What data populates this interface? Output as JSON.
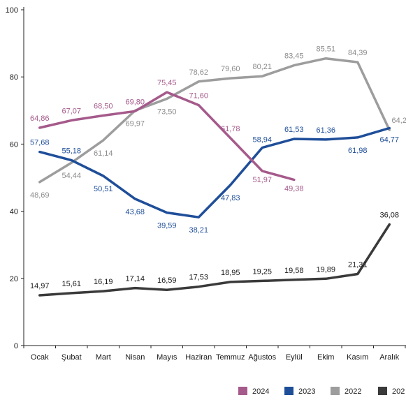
{
  "chart_data": {
    "type": "line",
    "title": "",
    "xlabel": "",
    "ylabel": "",
    "ylim": [
      0,
      100
    ],
    "yticks": [
      0,
      20,
      40,
      60,
      80,
      100
    ],
    "grid": false,
    "legend_position": "bottom-right",
    "categories": [
      "Ocak",
      "Şubat",
      "Mart",
      "Nisan",
      "Mayıs",
      "Haziran",
      "Temmuz",
      "Ağustos",
      "Eylül",
      "Ekim",
      "Kasım",
      "Aralık"
    ],
    "series": [
      {
        "name": "2024",
        "color": "#a55a8b",
        "values": [
          64.86,
          67.07,
          68.5,
          69.8,
          75.45,
          71.6,
          61.78,
          51.97,
          49.38,
          null,
          null,
          null
        ],
        "labels": [
          "64,86",
          "67,07",
          "68,50",
          "69,80",
          "75,45",
          "71,60",
          "61,78",
          "51,97",
          "49,38",
          "",
          "",
          ""
        ]
      },
      {
        "name": "2023",
        "color": "#1f4e99",
        "values": [
          57.68,
          55.18,
          50.51,
          43.68,
          39.59,
          38.21,
          47.83,
          58.94,
          61.53,
          61.36,
          61.98,
          64.77
        ],
        "labels": [
          "57,68",
          "55,18",
          "50,51",
          "43,68",
          "39,59",
          "38,21",
          "47,83",
          "58,94",
          "61,53",
          "61,36",
          "61,98",
          "64,77"
        ]
      },
      {
        "name": "2022",
        "color": "#9d9d9d",
        "values": [
          48.69,
          54.44,
          61.14,
          69.97,
          73.5,
          78.62,
          79.6,
          80.21,
          83.45,
          85.51,
          84.39,
          64.2
        ],
        "labels": [
          "48,69",
          "54,44",
          "61,14",
          "69,97",
          "73,50",
          "78,62",
          "79,60",
          "80,21",
          "83,45",
          "85,51",
          "84,39",
          "64,2"
        ]
      },
      {
        "name": "202",
        "color": "#3a3a3a",
        "values": [
          14.97,
          15.61,
          16.19,
          17.14,
          16.59,
          17.53,
          18.95,
          19.25,
          19.58,
          19.89,
          21.31,
          36.08
        ],
        "labels": [
          "14,97",
          "15,61",
          "16,19",
          "17,14",
          "16,59",
          "17,53",
          "18,95",
          "19,25",
          "19,58",
          "19,89",
          "21,31",
          "36,08"
        ]
      }
    ]
  }
}
